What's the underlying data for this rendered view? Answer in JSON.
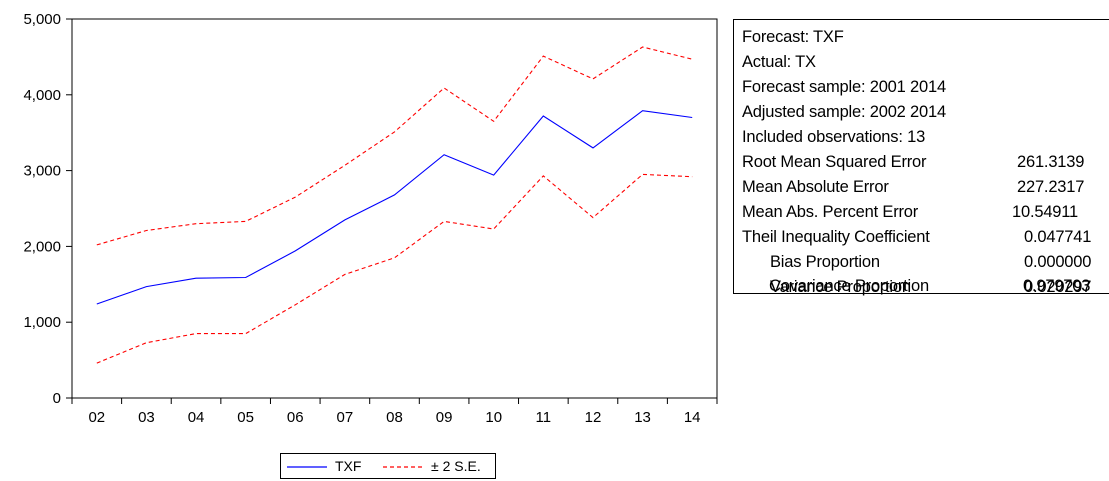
{
  "chart_data": {
    "type": "line",
    "categories": [
      "02",
      "03",
      "04",
      "05",
      "06",
      "07",
      "08",
      "09",
      "10",
      "11",
      "12",
      "13",
      "14"
    ],
    "ylim": [
      0,
      5000
    ],
    "yticks": [
      0,
      1000,
      2000,
      3000,
      4000,
      5000
    ],
    "ytick_labels": [
      "0",
      "1,000",
      "2,000",
      "3,000",
      "4,000",
      "5,000"
    ],
    "grid": false,
    "legend_position": "bottom-center",
    "series": [
      {
        "name": "TXF",
        "color": "#0000ff",
        "dash": "solid",
        "values": [
          1240,
          1470,
          1580,
          1590,
          1940,
          2350,
          2680,
          3210,
          2940,
          3720,
          3300,
          3790,
          3700
        ]
      },
      {
        "name": "± 2 S.E.",
        "color": "#ff0000",
        "dash": "dashed",
        "values": [
          2020,
          2210,
          2300,
          2330,
          2650,
          3070,
          3510,
          4090,
          3650,
          4510,
          4210,
          4630,
          4470
        ]
      },
      {
        "name": "",
        "color": "#ff0000",
        "dash": "dashed",
        "values": [
          460,
          730,
          850,
          850,
          1230,
          1630,
          1850,
          2330,
          2230,
          2930,
          2380,
          2950,
          2920
        ]
      }
    ]
  },
  "stats": {
    "forecast": "Forecast: TXF",
    "actual": "Actual: TX",
    "forecast_sample": "Forecast sample: 2001 2014",
    "adjusted_sample": "Adjusted sample: 2002 2014",
    "included_obs": "Included observations: 13",
    "rmse_label": "Root Mean Squared Error",
    "rmse_value": "261.3139",
    "mae_label": "Mean Absolute Error",
    "mae_value": "227.2317",
    "mape_label": "Mean Abs. Percent Error",
    "mape_value": "10.54911",
    "theil_label": "Theil Inequality Coefficient",
    "theil_value": "0.047741",
    "bias_label": "Bias Proportion",
    "bias_value": "0.000000",
    "variance_label": "Variance Proportion",
    "variance_value": "0.020297",
    "covariance_label": "Covariance Proportion",
    "covariance_value": "0.979703"
  },
  "legend": {
    "txf_label": "TXF",
    "se_label": "± 2 S.E."
  }
}
